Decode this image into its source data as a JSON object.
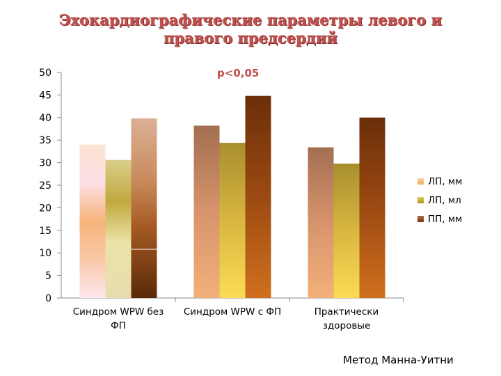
{
  "chart_data": {
    "type": "bar",
    "title": "Эхокардиографические параметры левого и правого предсердий",
    "annotation": "р<0,05",
    "note": "Метод Манна-Уитни",
    "categories": [
      [
        "Синдром WPW без",
        "ФП"
      ],
      [
        "Синдром  WPW с ФП"
      ],
      [
        "Практически",
        "здоровые"
      ]
    ],
    "series": [
      {
        "name": "ЛП, мм",
        "values": [
          34,
          38.2,
          33.4
        ],
        "color": "#f5a65b"
      },
      {
        "name": "ЛП, мл",
        "values": [
          30.6,
          34.4,
          29.8
        ],
        "color": "#c9a227"
      },
      {
        "name": "ПП, мм",
        "values": [
          39.8,
          44.8,
          40.0
        ],
        "color": "#8b3a0f"
      }
    ],
    "ylim": [
      0,
      50
    ],
    "yticks": [
      0,
      5,
      10,
      15,
      20,
      25,
      30,
      35,
      40,
      45,
      50
    ],
    "legend_position": "right",
    "grid": false
  }
}
